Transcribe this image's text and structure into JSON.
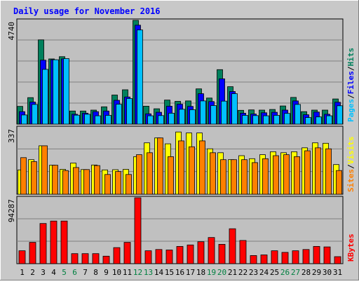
{
  "chart_data": {
    "type": "bar",
    "title": "Daily usage for November 2016",
    "categories": [
      "1",
      "2",
      "3",
      "4",
      "5",
      "6",
      "7",
      "8",
      "9",
      "10",
      "11",
      "12",
      "13",
      "14",
      "15",
      "16",
      "17",
      "18",
      "19",
      "20",
      "21",
      "22",
      "23",
      "24",
      "25",
      "26",
      "27",
      "28",
      "29",
      "30",
      "31"
    ],
    "weekend_days": [
      "5",
      "6",
      "12",
      "13",
      "19",
      "20",
      "26",
      "27"
    ],
    "panels": [
      {
        "name": "hits_files_pages",
        "ymax_label": "4740",
        "ymax": 4740,
        "right_labels": [
          {
            "text": "Hits",
            "color": "#00805c"
          },
          {
            "text": "/",
            "color": "#000000"
          },
          {
            "text": "Files",
            "color": "#0000ff"
          },
          {
            "text": "/",
            "color": "#000000"
          },
          {
            "text": "Pages",
            "color": "#00c0ff"
          }
        ],
        "series": [
          {
            "name": "Hits",
            "color": "#00805c",
            "values": [
              810,
              1210,
              3850,
              2980,
              3080,
              600,
              600,
              640,
              790,
              1330,
              1570,
              4740,
              820,
              700,
              1100,
              1040,
              1060,
              1610,
              1190,
              2490,
              1710,
              630,
              650,
              640,
              670,
              830,
              1220,
              570,
              640,
              640,
              1150
            ]
          },
          {
            "name": "Files",
            "color": "#0000ff",
            "values": [
              570,
              1010,
              2920,
              2940,
              2980,
              450,
              500,
              570,
              600,
              1090,
              1240,
              4520,
              470,
              540,
              820,
              910,
              810,
              1390,
              1030,
              2070,
              1490,
              500,
              460,
              520,
              540,
              640,
              1060,
              430,
              550,
              450,
              1000
            ]
          },
          {
            "name": "Pages",
            "color": "#00c0ff",
            "values": [
              420,
              900,
              2500,
              2940,
              2990,
              410,
              450,
              380,
              400,
              910,
              1170,
              4300,
              380,
              390,
              500,
              680,
              660,
              1060,
              850,
              1050,
              1390,
              400,
              390,
              380,
              400,
              490,
              900,
              300,
              330,
              380,
              840
            ]
          }
        ]
      },
      {
        "name": "visits_sites",
        "ymax_label": "337",
        "ymax": 337,
        "right_labels": [
          {
            "text": "Visits",
            "color": "#ffff00"
          },
          {
            "text": "/",
            "color": "#000000"
          },
          {
            "text": "Sites",
            "color": "#ff8000"
          }
        ],
        "series": [
          {
            "name": "Visits",
            "color": "#ffff00",
            "values": [
              123,
              175,
              245,
              147,
              126,
              158,
              125,
              148,
              123,
              124,
              126,
              190,
              260,
              285,
              255,
              315,
              310,
              310,
              230,
              210,
              175,
              195,
              180,
              200,
              215,
              210,
              215,
              235,
              260,
              258,
              150
            ]
          },
          {
            "name": "Sites",
            "color": "#ff8000",
            "values": [
              185,
              165,
              245,
              147,
              120,
              135,
              125,
              145,
              100,
              115,
              100,
              200,
              210,
              285,
              190,
              270,
              240,
              270,
              210,
              175,
              175,
              175,
              160,
              180,
              195,
              200,
              190,
              220,
              235,
              230,
              120
            ]
          }
        ]
      },
      {
        "name": "kbytes",
        "ymax_label": "94287",
        "ymax": 94287,
        "right_labels": [
          {
            "text": "KBytes",
            "color": "#ff0000"
          }
        ],
        "series": [
          {
            "name": "KBytes",
            "color": "#ff0000",
            "values": [
              18500,
              30500,
              57500,
              61000,
              61000,
              14300,
              14300,
              14300,
              10700,
              23000,
              30500,
              94287,
              18500,
              20300,
              19600,
              24700,
              26800,
              31400,
              37400,
              27700,
              50000,
              33200,
              11600,
              12500,
              18500,
              16100,
              18500,
              20300,
              24700,
              24000,
              10000
            ]
          }
        ]
      }
    ],
    "ylim_note": "",
    "grid": true
  }
}
